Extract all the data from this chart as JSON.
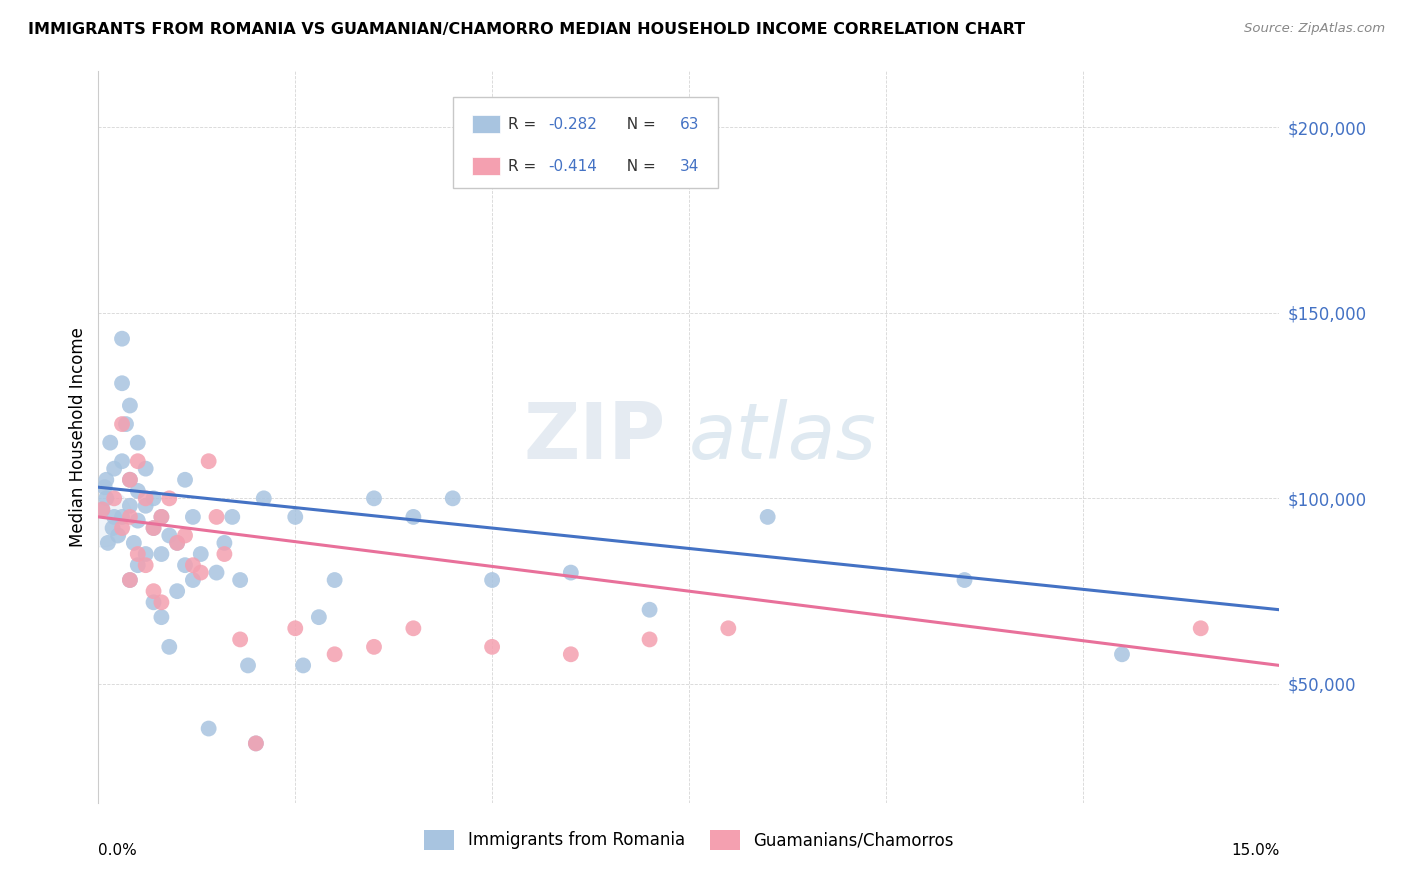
{
  "title": "IMMIGRANTS FROM ROMANIA VS GUAMANIAN/CHAMORRO MEDIAN HOUSEHOLD INCOME CORRELATION CHART",
  "source": "Source: ZipAtlas.com",
  "ylabel": "Median Household Income",
  "yticks": [
    50000,
    100000,
    150000,
    200000
  ],
  "ytick_labels": [
    "$50,000",
    "$100,000",
    "$150,000",
    "$200,000"
  ],
  "xlim": [
    0.0,
    0.15
  ],
  "ylim": [
    18000,
    215000
  ],
  "legend1_label": "Immigrants from Romania",
  "legend2_label": "Guamanians/Chamorros",
  "color_blue": "#a8c4e0",
  "color_pink": "#f4a0b0",
  "line_blue": "#4472c4",
  "line_pink": "#e8709a",
  "text_dark": "#333333",
  "r1_val": "-0.282",
  "n1_val": "63",
  "r2_val": "-0.414",
  "n2_val": "34",
  "watermark_zip": "ZIP",
  "watermark_atlas": "atlas",
  "romania_x": [
    0.0005,
    0.001,
    0.001,
    0.0015,
    0.002,
    0.002,
    0.0025,
    0.003,
    0.003,
    0.003,
    0.003,
    0.0035,
    0.004,
    0.004,
    0.004,
    0.004,
    0.0045,
    0.005,
    0.005,
    0.005,
    0.005,
    0.006,
    0.006,
    0.006,
    0.007,
    0.007,
    0.007,
    0.008,
    0.008,
    0.008,
    0.009,
    0.009,
    0.01,
    0.01,
    0.011,
    0.011,
    0.012,
    0.012,
    0.013,
    0.014,
    0.015,
    0.016,
    0.017,
    0.018,
    0.019,
    0.02,
    0.021,
    0.025,
    0.026,
    0.028,
    0.03,
    0.035,
    0.04,
    0.045,
    0.05,
    0.06,
    0.07,
    0.085,
    0.11,
    0.13,
    0.0008,
    0.0012,
    0.0018
  ],
  "romania_y": [
    97000,
    100000,
    105000,
    115000,
    108000,
    95000,
    90000,
    143000,
    131000,
    110000,
    95000,
    120000,
    125000,
    105000,
    98000,
    78000,
    88000,
    115000,
    102000,
    94000,
    82000,
    108000,
    98000,
    85000,
    100000,
    92000,
    72000,
    95000,
    85000,
    68000,
    90000,
    60000,
    88000,
    75000,
    105000,
    82000,
    95000,
    78000,
    85000,
    38000,
    80000,
    88000,
    95000,
    78000,
    55000,
    34000,
    100000,
    95000,
    55000,
    68000,
    78000,
    100000,
    95000,
    100000,
    78000,
    80000,
    70000,
    95000,
    78000,
    58000,
    103000,
    88000,
    92000
  ],
  "guam_x": [
    0.0005,
    0.002,
    0.003,
    0.003,
    0.004,
    0.004,
    0.004,
    0.005,
    0.005,
    0.006,
    0.006,
    0.007,
    0.007,
    0.008,
    0.008,
    0.009,
    0.01,
    0.011,
    0.012,
    0.013,
    0.014,
    0.015,
    0.016,
    0.018,
    0.02,
    0.025,
    0.03,
    0.035,
    0.04,
    0.05,
    0.06,
    0.07,
    0.08,
    0.14
  ],
  "guam_y": [
    97000,
    100000,
    120000,
    92000,
    105000,
    95000,
    78000,
    110000,
    85000,
    100000,
    82000,
    92000,
    75000,
    95000,
    72000,
    100000,
    88000,
    90000,
    82000,
    80000,
    110000,
    95000,
    85000,
    62000,
    34000,
    65000,
    58000,
    60000,
    65000,
    60000,
    58000,
    62000,
    65000,
    65000
  ],
  "romania_line_x": [
    0.0,
    0.15
  ],
  "romania_line_y": [
    103000,
    70000
  ],
  "guam_line_x": [
    0.0,
    0.15
  ],
  "guam_line_y": [
    95000,
    55000
  ]
}
